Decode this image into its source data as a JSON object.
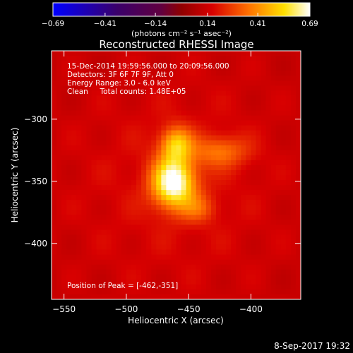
{
  "chart_data": {
    "type": "heatmap",
    "title": "Reconstructed RHESSI Image",
    "xlabel": "Heliocentric X (arcsec)",
    "ylabel": "Heliocentric Y (arcsec)",
    "xlim": [
      -560,
      -360
    ],
    "ylim": [
      -445,
      -245
    ],
    "xticks": [
      -550,
      -500,
      -450,
      -400
    ],
    "yticks": [
      -300,
      -350,
      -400
    ],
    "colorbar": {
      "min": -0.69,
      "max": 0.69,
      "ticks": [
        -0.69,
        -0.41,
        -0.14,
        0.14,
        0.41,
        0.69
      ],
      "unit_label": "(photons cm⁻² s⁻¹ asec⁻²)",
      "colormap": "blue-black-red-yellow-white"
    },
    "annotations": [
      "15-Dec-2014 19:59:56.000 to 20:09:56.000",
      "Detectors: 3F 6F 7F 9F, Att 0",
      "Energy Range: 3.0 - 6.0 keV",
      "Clean     Total counts: 1.48E+05"
    ],
    "peak_label": "Position of Peak = [-462,-351]",
    "peak": [
      -462,
      -351
    ],
    "sources": [
      {
        "x": -462,
        "y": -351,
        "sx": 12,
        "sy": 14,
        "amp": 0.69
      },
      {
        "x": -460,
        "y": -320,
        "sx": 9,
        "sy": 10,
        "amp": 0.45
      },
      {
        "x": -425,
        "y": -326,
        "sx": 16,
        "sy": 9,
        "amp": 0.32
      },
      {
        "x": -442,
        "y": -372,
        "sx": 10,
        "sy": 8,
        "amp": 0.26
      }
    ]
  },
  "footer_date": "8-Sep-2017 19:32"
}
